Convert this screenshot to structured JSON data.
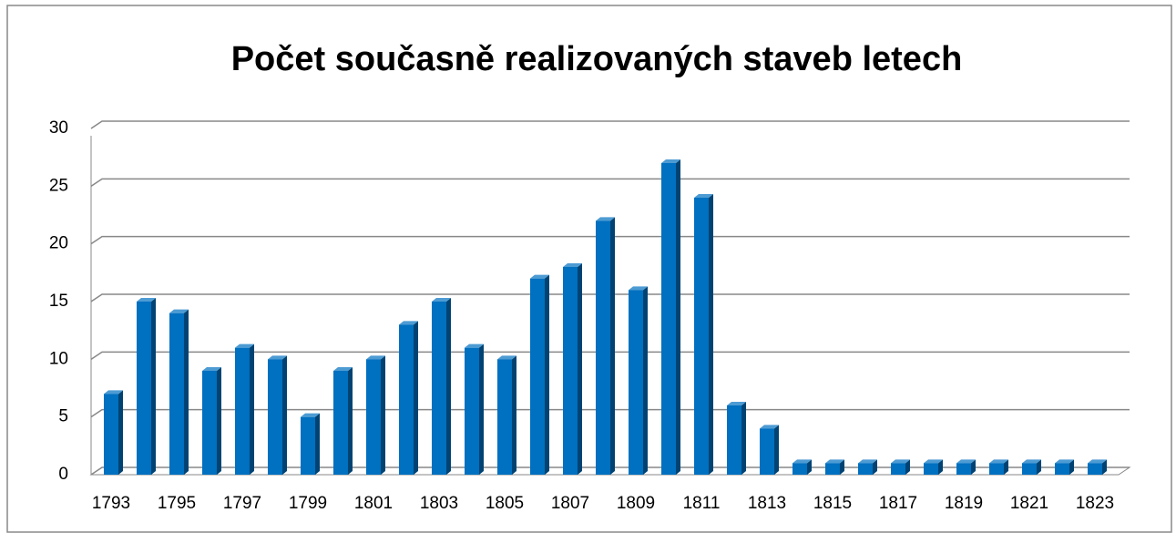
{
  "chart_data": {
    "type": "bar",
    "title": "Počet současně realizovaných staveb letech",
    "categories": [
      1793,
      null,
      1795,
      null,
      1797,
      null,
      1799,
      null,
      1801,
      null,
      1803,
      null,
      1805,
      null,
      1807,
      null,
      1809,
      null,
      1811,
      null,
      1813,
      null,
      1815,
      null,
      1817,
      null,
      1819,
      null,
      1821,
      null,
      1823
    ],
    "values": [
      7,
      15,
      14,
      9,
      11,
      10,
      5,
      9,
      10,
      13,
      15,
      11,
      10,
      17,
      18,
      22,
      16,
      27,
      24,
      6,
      4,
      1,
      1,
      1,
      1,
      1,
      1,
      1,
      1,
      1,
      1
    ],
    "color": "#0070c0",
    "ylim": [
      0,
      30
    ],
    "yticks": [
      0,
      5,
      10,
      15,
      20,
      25,
      30
    ],
    "grid": true
  }
}
